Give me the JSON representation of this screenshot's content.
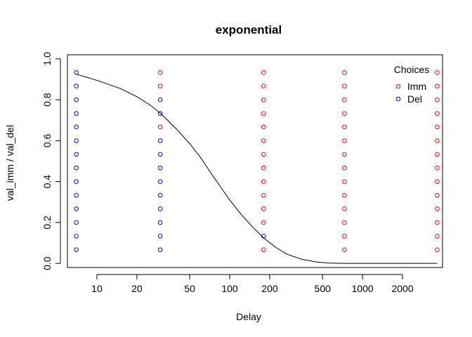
{
  "chart_data": {
    "type": "scatter",
    "title": "exponential",
    "xlabel": "Delay",
    "ylabel": "val_imm / val_del",
    "x_scale": "log",
    "xlim": [
      6.0,
      4000
    ],
    "ylim": [
      -0.02,
      1.02
    ],
    "x_ticks": [
      10,
      20,
      50,
      100,
      200,
      500,
      1000,
      2000
    ],
    "x_tick_labels": [
      "10",
      "20",
      "50",
      "100",
      "200",
      "500",
      "1000",
      "2000"
    ],
    "y_ticks": [
      0.0,
      0.2,
      0.4,
      0.6,
      0.8,
      1.0
    ],
    "y_tick_labels": [
      "0.0",
      "0.2",
      "0.4",
      "0.6",
      "0.8",
      "1.0"
    ],
    "legend": {
      "title": "Choices",
      "position": "top-right",
      "entries": [
        {
          "label": "Imm",
          "color": "#ff0000"
        },
        {
          "label": "Del",
          "color": "#0000ff"
        }
      ]
    },
    "series": [
      {
        "name": "Imm",
        "color": "#ff0000",
        "points": [
          {
            "x": 30,
            "y": 0.933
          },
          {
            "x": 30,
            "y": 0.867
          },
          {
            "x": 30,
            "y": 0.667
          },
          {
            "x": 180,
            "y": 0.933
          },
          {
            "x": 180,
            "y": 0.867
          },
          {
            "x": 180,
            "y": 0.8
          },
          {
            "x": 180,
            "y": 0.733
          },
          {
            "x": 180,
            "y": 0.667
          },
          {
            "x": 180,
            "y": 0.6
          },
          {
            "x": 180,
            "y": 0.533
          },
          {
            "x": 180,
            "y": 0.467
          },
          {
            "x": 180,
            "y": 0.4
          },
          {
            "x": 180,
            "y": 0.333
          },
          {
            "x": 180,
            "y": 0.267
          },
          {
            "x": 180,
            "y": 0.2
          },
          {
            "x": 180,
            "y": 0.067
          },
          {
            "x": 730,
            "y": 0.933
          },
          {
            "x": 730,
            "y": 0.867
          },
          {
            "x": 730,
            "y": 0.8
          },
          {
            "x": 730,
            "y": 0.733
          },
          {
            "x": 730,
            "y": 0.667
          },
          {
            "x": 730,
            "y": 0.6
          },
          {
            "x": 730,
            "y": 0.533
          },
          {
            "x": 730,
            "y": 0.467
          },
          {
            "x": 730,
            "y": 0.4
          },
          {
            "x": 730,
            "y": 0.333
          },
          {
            "x": 730,
            "y": 0.267
          },
          {
            "x": 730,
            "y": 0.2
          },
          {
            "x": 730,
            "y": 0.133
          },
          {
            "x": 730,
            "y": 0.067
          },
          {
            "x": 3650,
            "y": 0.933
          },
          {
            "x": 3650,
            "y": 0.867
          },
          {
            "x": 3650,
            "y": 0.8
          },
          {
            "x": 3650,
            "y": 0.733
          },
          {
            "x": 3650,
            "y": 0.667
          },
          {
            "x": 3650,
            "y": 0.6
          },
          {
            "x": 3650,
            "y": 0.533
          },
          {
            "x": 3650,
            "y": 0.467
          },
          {
            "x": 3650,
            "y": 0.4
          },
          {
            "x": 3650,
            "y": 0.333
          },
          {
            "x": 3650,
            "y": 0.267
          },
          {
            "x": 3650,
            "y": 0.2
          },
          {
            "x": 3650,
            "y": 0.133
          },
          {
            "x": 3650,
            "y": 0.067
          }
        ]
      },
      {
        "name": "Del",
        "color": "#0000ff",
        "points": [
          {
            "x": 7,
            "y": 0.933
          },
          {
            "x": 7,
            "y": 0.867
          },
          {
            "x": 7,
            "y": 0.8
          },
          {
            "x": 7,
            "y": 0.733
          },
          {
            "x": 7,
            "y": 0.667
          },
          {
            "x": 7,
            "y": 0.6
          },
          {
            "x": 7,
            "y": 0.533
          },
          {
            "x": 7,
            "y": 0.467
          },
          {
            "x": 7,
            "y": 0.4
          },
          {
            "x": 7,
            "y": 0.333
          },
          {
            "x": 7,
            "y": 0.267
          },
          {
            "x": 7,
            "y": 0.2
          },
          {
            "x": 7,
            "y": 0.133
          },
          {
            "x": 7,
            "y": 0.067
          },
          {
            "x": 30,
            "y": 0.8
          },
          {
            "x": 30,
            "y": 0.733
          },
          {
            "x": 30,
            "y": 0.6
          },
          {
            "x": 30,
            "y": 0.533
          },
          {
            "x": 30,
            "y": 0.467
          },
          {
            "x": 30,
            "y": 0.4
          },
          {
            "x": 30,
            "y": 0.333
          },
          {
            "x": 30,
            "y": 0.267
          },
          {
            "x": 30,
            "y": 0.2
          },
          {
            "x": 30,
            "y": 0.133
          },
          {
            "x": 30,
            "y": 0.067
          },
          {
            "x": 180,
            "y": 0.133
          }
        ]
      }
    ],
    "curve": {
      "color": "#000000",
      "points": [
        {
          "x": 7,
          "y": 0.925
        },
        {
          "x": 10,
          "y": 0.895
        },
        {
          "x": 15,
          "y": 0.855
        },
        {
          "x": 20,
          "y": 0.815
        },
        {
          "x": 25,
          "y": 0.775
        },
        {
          "x": 30,
          "y": 0.735
        },
        {
          "x": 40,
          "y": 0.655
        },
        {
          "x": 50,
          "y": 0.585
        },
        {
          "x": 60,
          "y": 0.52
        },
        {
          "x": 70,
          "y": 0.455
        },
        {
          "x": 80,
          "y": 0.4
        },
        {
          "x": 100,
          "y": 0.31
        },
        {
          "x": 120,
          "y": 0.245
        },
        {
          "x": 150,
          "y": 0.175
        },
        {
          "x": 180,
          "y": 0.125
        },
        {
          "x": 220,
          "y": 0.08
        },
        {
          "x": 270,
          "y": 0.045
        },
        {
          "x": 350,
          "y": 0.02
        },
        {
          "x": 450,
          "y": 0.007
        },
        {
          "x": 550,
          "y": 0.002
        },
        {
          "x": 700,
          "y": 0.0
        },
        {
          "x": 1000,
          "y": 0.0
        },
        {
          "x": 2000,
          "y": 0.0
        },
        {
          "x": 3650,
          "y": 0.0
        }
      ]
    }
  }
}
